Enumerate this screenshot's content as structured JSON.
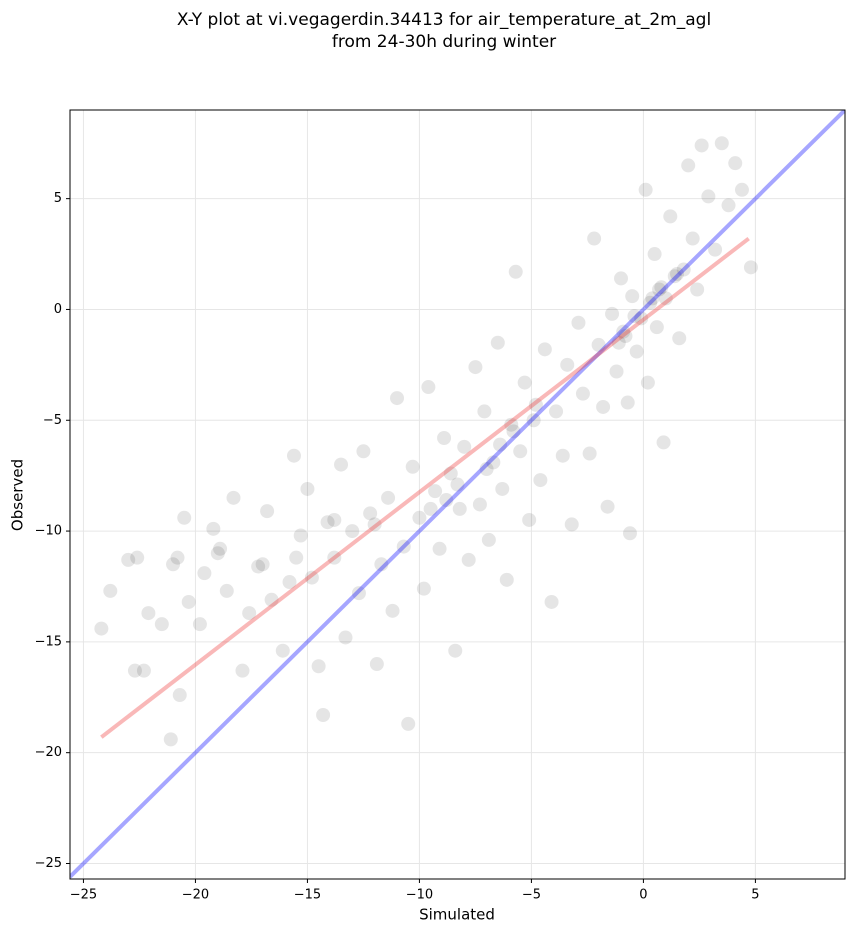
{
  "chart_data": {
    "type": "scatter",
    "title": [
      "X-Y plot at vi.vegagerdin.34413 for air_temperature_at_2m_agl",
      "from 24-30h during winter"
    ],
    "xlabel": "Simulated",
    "ylabel": "Observed",
    "xlim": [
      -25.6,
      9.0
    ],
    "ylim": [
      -25.7,
      9.0
    ],
    "xticks": [
      {
        "value": -25,
        "label": "−25"
      },
      {
        "value": -20,
        "label": "−20"
      },
      {
        "value": -15,
        "label": "−15"
      },
      {
        "value": -10,
        "label": "−10"
      },
      {
        "value": -5,
        "label": "−5"
      },
      0,
      5
    ],
    "yticks": [
      {
        "value": -25,
        "label": "−25"
      },
      {
        "value": -20,
        "label": "−20"
      },
      {
        "value": -15,
        "label": "−15"
      },
      {
        "value": -10,
        "label": "−10"
      },
      {
        "value": -5,
        "label": "−5"
      },
      0,
      5
    ],
    "grid": true,
    "color": "#000000",
    "x": [
      -24.2,
      -23.8,
      -23.0,
      -22.6,
      -22.7,
      -22.3,
      -22.1,
      -21.5,
      -21.0,
      -21.1,
      -20.8,
      -20.5,
      -20.7,
      -20.3,
      -19.8,
      -19.6,
      -19.2,
      -18.9,
      -18.6,
      -18.3,
      -17.9,
      -17.6,
      -17.2,
      -16.8,
      -16.6,
      -16.1,
      -15.8,
      -15.6,
      -15.3,
      -15.0,
      -14.8,
      -14.5,
      -14.3,
      -14.1,
      -13.8,
      -13.5,
      -13.3,
      -13.0,
      -12.7,
      -12.5,
      -12.2,
      -11.9,
      -11.7,
      -11.4,
      -11.2,
      -11.0,
      -10.7,
      -10.5,
      -10.3,
      -10.0,
      -9.8,
      -9.6,
      -9.3,
      -9.1,
      -8.9,
      -8.6,
      -8.4,
      -8.2,
      -8.0,
      -7.8,
      -7.5,
      -7.3,
      -7.1,
      -6.9,
      -6.7,
      -6.5,
      -6.3,
      -6.1,
      -5.9,
      -5.7,
      -5.5,
      -5.3,
      -5.1,
      -4.9,
      -4.6,
      -4.4,
      -4.1,
      -3.9,
      -3.6,
      -3.4,
      -3.2,
      -2.9,
      -2.7,
      -2.4,
      -2.2,
      -2.0,
      -1.8,
      -1.6,
      -1.4,
      -1.2,
      -1.0,
      -0.8,
      -0.7,
      -0.6,
      -0.5,
      -0.3,
      -0.1,
      0.1,
      0.2,
      0.3,
      0.5,
      0.6,
      0.8,
      0.9,
      1.0,
      1.2,
      1.4,
      1.6,
      1.8,
      2.0,
      2.2,
      2.4,
      2.6,
      2.9,
      3.2,
      3.5,
      3.8,
      4.1,
      4.4,
      4.8,
      -9.5,
      -8.8,
      -8.3,
      -7.0,
      -6.4,
      -5.8,
      -4.8,
      -1.1,
      -0.9,
      -0.4,
      0.4,
      0.7,
      1.5,
      -12.0,
      -13.8,
      -17.0,
      -19.0,
      -15.5
    ],
    "y": [
      -14.4,
      -12.7,
      -11.3,
      -11.2,
      -16.3,
      -16.3,
      -13.7,
      -14.2,
      -11.5,
      -19.4,
      -11.2,
      -9.4,
      -17.4,
      -13.2,
      -14.2,
      -11.9,
      -9.9,
      -10.8,
      -12.7,
      -8.5,
      -16.3,
      -13.7,
      -11.6,
      -9.1,
      -13.1,
      -15.4,
      -12.3,
      -6.6,
      -10.2,
      -8.1,
      -12.1,
      -16.1,
      -18.3,
      -9.6,
      -11.2,
      -7.0,
      -14.8,
      -10.0,
      -12.8,
      -6.4,
      -9.2,
      -16.0,
      -11.5,
      -8.5,
      -13.6,
      -4.0,
      -10.7,
      -18.7,
      -7.1,
      -9.4,
      -12.6,
      -3.5,
      -8.2,
      -10.8,
      -5.8,
      -7.4,
      -15.4,
      -9.0,
      -6.2,
      -11.3,
      -2.6,
      -8.8,
      -4.6,
      -10.4,
      -6.9,
      -1.5,
      -8.1,
      -12.2,
      -5.2,
      1.7,
      -6.4,
      -3.3,
      -9.5,
      -5.0,
      -7.7,
      -1.8,
      -13.2,
      -4.6,
      -6.6,
      -2.5,
      -9.7,
      -0.6,
      -3.8,
      -6.5,
      3.2,
      -1.6,
      -4.4,
      -8.9,
      -0.2,
      -2.8,
      1.4,
      -1.2,
      -4.2,
      -10.1,
      0.6,
      -1.9,
      -0.4,
      5.4,
      -3.3,
      0.3,
      2.5,
      -0.8,
      1.0,
      -6.0,
      0.5,
      4.2,
      1.5,
      -1.3,
      1.8,
      6.5,
      3.2,
      0.9,
      7.4,
      5.1,
      2.7,
      7.5,
      4.7,
      6.6,
      5.4,
      1.9,
      -9.0,
      -8.6,
      -7.9,
      -7.2,
      -6.1,
      -5.5,
      -4.3,
      -1.5,
      -1.0,
      -0.3,
      0.5,
      0.9,
      1.6,
      -9.7,
      -9.5,
      -11.5,
      -11.0,
      -11.2
    ],
    "lines": [
      {
        "color": "#0000ff",
        "x": [
          -25.6,
          9.0
        ],
        "y": [
          -25.6,
          9.0
        ]
      },
      {
        "color": "#ee3333",
        "x": [
          -24.2,
          4.7
        ],
        "y": [
          -19.3,
          3.2
        ]
      }
    ]
  }
}
